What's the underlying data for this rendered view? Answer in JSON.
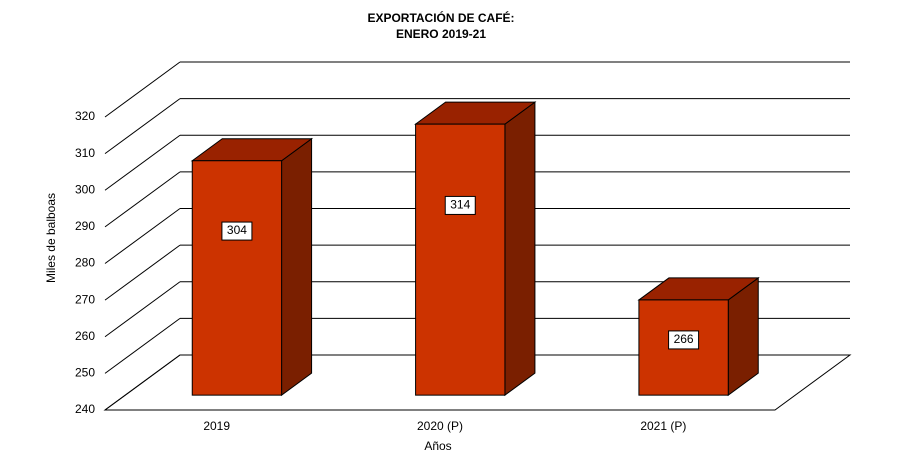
{
  "chart_data": {
    "type": "bar3d",
    "title": "EXPORTACIÓN  DE  CAFÉ:",
    "subtitle": "ENERO  2019-21",
    "x_label": "Años",
    "y_label": "Miles de balboas",
    "categories": [
      "2019",
      "2020 (P)",
      "2021 (P)"
    ],
    "values": [
      304,
      314,
      266
    ],
    "color": "#cc3300",
    "ylim": [
      240,
      320
    ],
    "yticks": [
      240,
      250,
      260,
      270,
      280,
      290,
      300,
      310,
      320
    ],
    "grid": true
  }
}
